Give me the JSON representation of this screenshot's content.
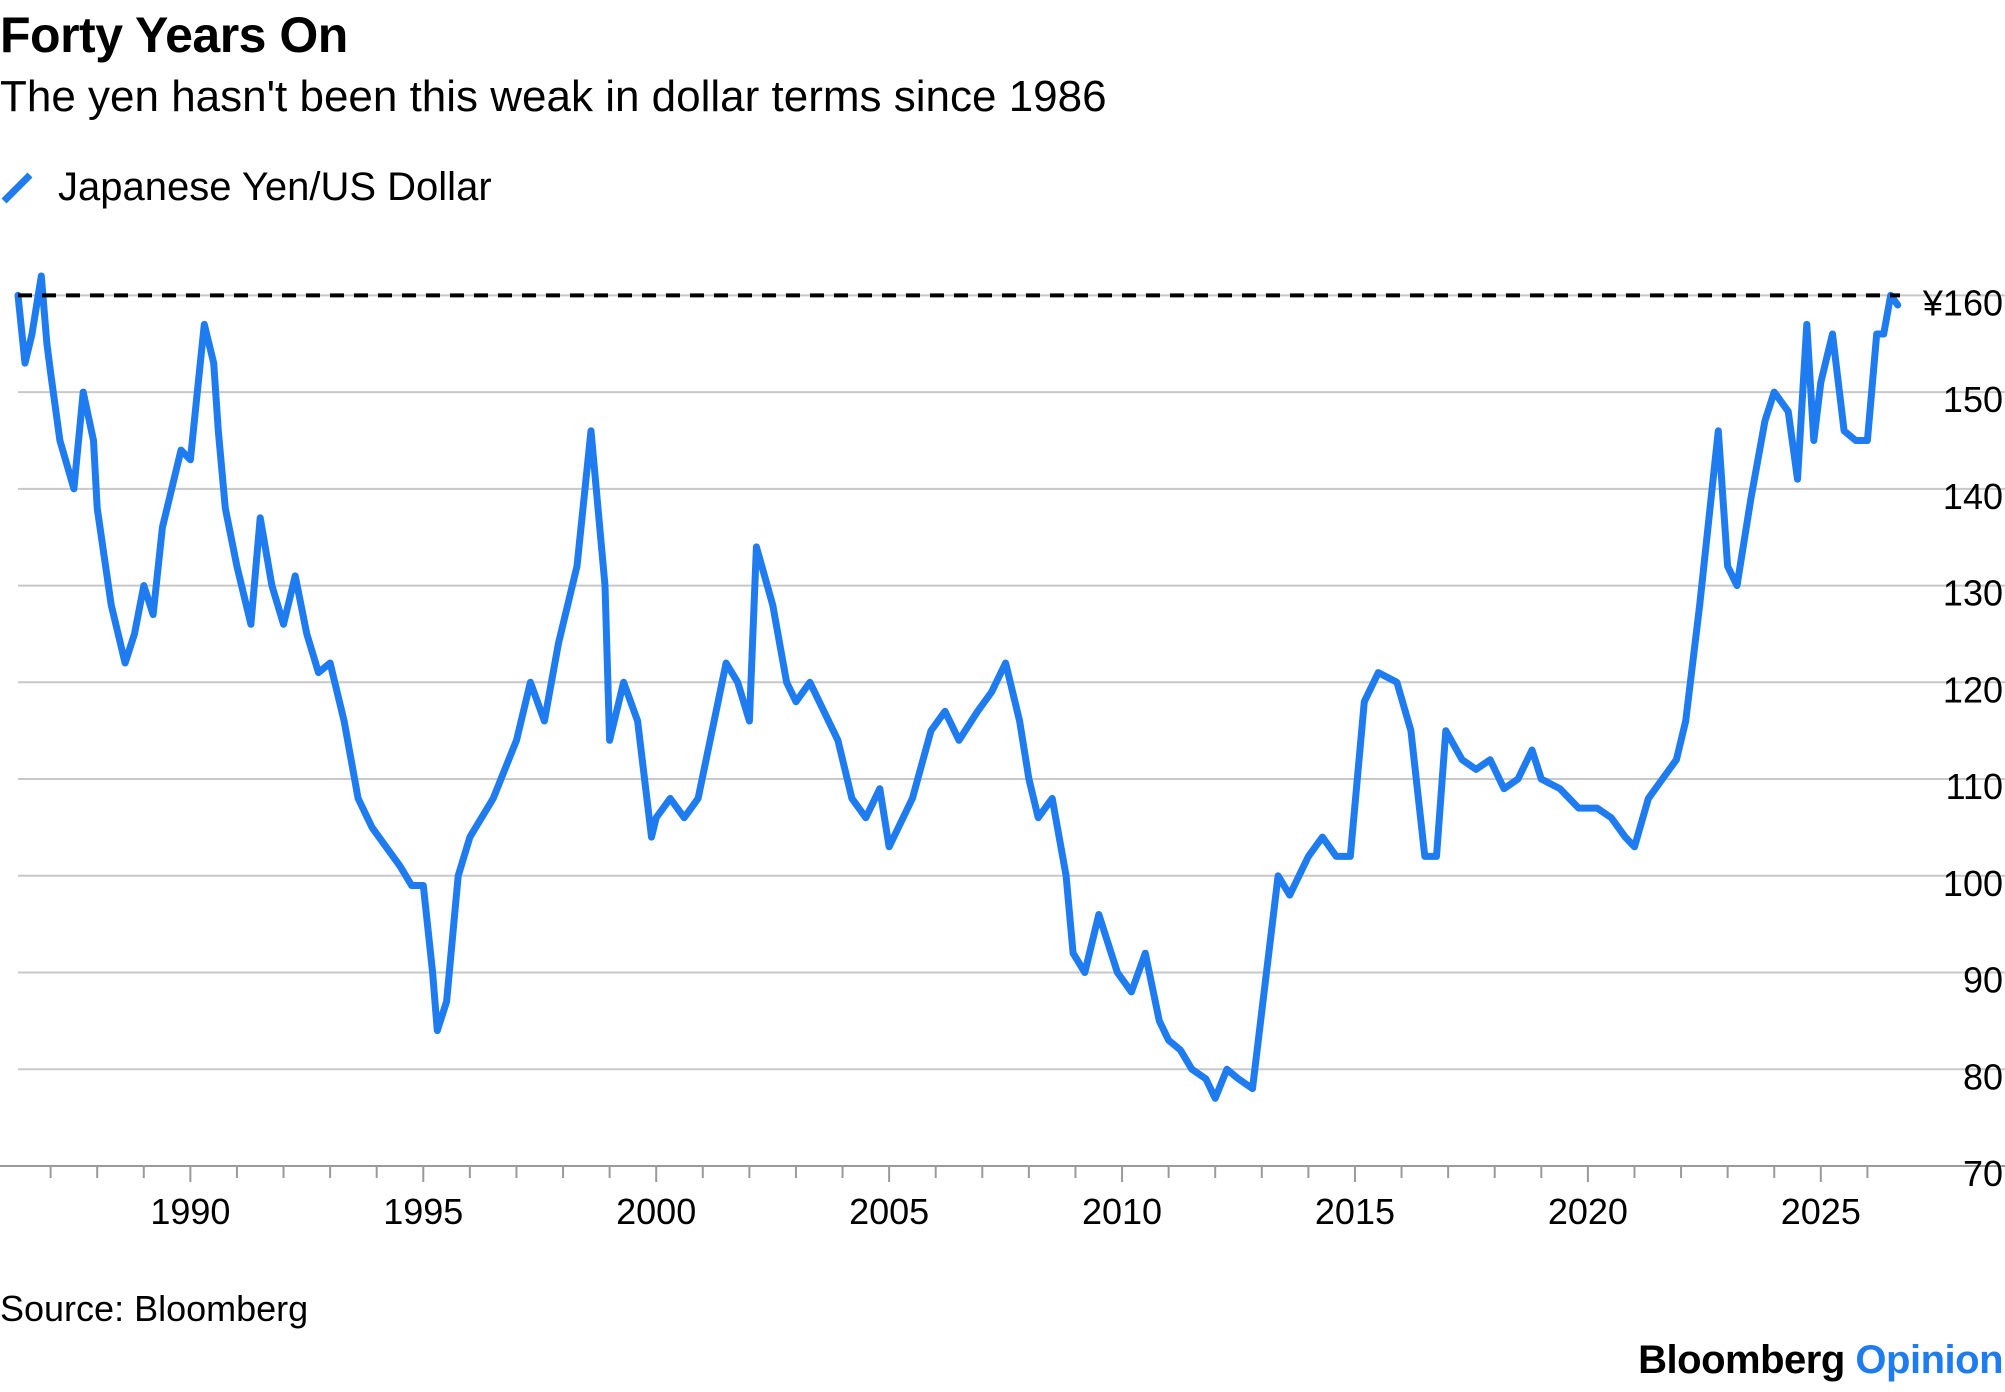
{
  "header": {
    "title": "Forty Years On",
    "subtitle": "The yen hasn't been this weak in dollar terms since 1986"
  },
  "footer": {
    "source": "Source: Bloomberg",
    "brand_main": "Bloomberg",
    "brand_accent": "Opinion"
  },
  "colors": {
    "series": "#1f7cf0",
    "reference": "#000000",
    "grid": "#c8c8c8",
    "brand_accent": "#1f7cf0"
  },
  "chart_data": {
    "type": "line",
    "title": "Forty Years On",
    "subtitle": "The yen hasn't been this weak in dollar terms since 1986",
    "xlabel": "",
    "ylabel": "",
    "xlim": [
      1986.3,
      2026.7
    ],
    "ylim": [
      70,
      162
    ],
    "y_ticks": [
      70,
      80,
      90,
      100,
      110,
      120,
      130,
      140,
      150,
      160
    ],
    "y_tick_labels": [
      "70",
      "80",
      "90",
      "100",
      "110",
      "120",
      "130",
      "140",
      "150",
      "¥160"
    ],
    "x_ticks": [
      1990,
      1995,
      2000,
      2005,
      2010,
      2015,
      2020,
      2025
    ],
    "x_tick_labels": [
      "1990",
      "1995",
      "2000",
      "2005",
      "2010",
      "2015",
      "2020",
      "2025"
    ],
    "grid": "horizontal",
    "legend_position": "top-left",
    "reference_line": {
      "value": 160,
      "style": "dashed"
    },
    "series": [
      {
        "name": "Japanese Yen/US Dollar",
        "x": [
          1986.3,
          1986.45,
          1986.6,
          1986.8,
          1986.92,
          1987.0,
          1987.2,
          1987.5,
          1987.7,
          1987.92,
          1988.0,
          1988.3,
          1988.6,
          1988.8,
          1989.0,
          1989.2,
          1989.4,
          1989.6,
          1989.8,
          1990.0,
          1990.15,
          1990.3,
          1990.5,
          1990.6,
          1990.75,
          1991.0,
          1991.3,
          1991.5,
          1991.75,
          1992.0,
          1992.25,
          1992.5,
          1992.75,
          1993.0,
          1993.3,
          1993.6,
          1993.9,
          1994.2,
          1994.5,
          1994.75,
          1995.0,
          1995.2,
          1995.3,
          1995.5,
          1995.75,
          1996.0,
          1996.5,
          1997.0,
          1997.3,
          1997.6,
          1997.9,
          1998.3,
          1998.6,
          1998.75,
          1998.9,
          1999.0,
          1999.3,
          1999.6,
          1999.9,
          2000.0,
          2000.3,
          2000.6,
          2000.9,
          2001.2,
          2001.5,
          2001.75,
          2002.0,
          2002.15,
          2002.5,
          2002.8,
          2003.0,
          2003.3,
          2003.6,
          2003.9,
          2004.2,
          2004.5,
          2004.8,
          2005.0,
          2005.5,
          2005.9,
          2006.2,
          2006.5,
          2006.9,
          2007.2,
          2007.5,
          2007.8,
          2008.0,
          2008.2,
          2008.5,
          2008.8,
          2008.95,
          2009.2,
          2009.5,
          2009.9,
          2010.2,
          2010.5,
          2010.8,
          2011.0,
          2011.25,
          2011.5,
          2011.8,
          2012.0,
          2012.25,
          2012.5,
          2012.8,
          2013.0,
          2013.35,
          2013.6,
          2014.0,
          2014.3,
          2014.6,
          2014.9,
          2015.2,
          2015.5,
          2015.9,
          2016.2,
          2016.5,
          2016.75,
          2016.95,
          2017.3,
          2017.6,
          2017.9,
          2018.2,
          2018.5,
          2018.8,
          2019.0,
          2019.4,
          2019.8,
          2020.2,
          2020.5,
          2020.8,
          2021.0,
          2021.3,
          2021.6,
          2021.9,
          2022.1,
          2022.4,
          2022.6,
          2022.8,
          2023.0,
          2023.2,
          2023.5,
          2023.8,
          2024.0,
          2024.3,
          2024.5,
          2024.7,
          2024.85,
          2025.0,
          2025.25,
          2025.5,
          2025.75,
          2026.0,
          2026.2,
          2026.35,
          2026.5,
          2026.65
        ],
        "values": [
          160.0,
          153.0,
          156.0,
          162.0,
          155.0,
          152.0,
          145.0,
          140.0,
          150.0,
          145.0,
          138.0,
          128.0,
          122.0,
          125.0,
          130.0,
          127.0,
          136.0,
          140.0,
          144.0,
          143.0,
          150.0,
          157.0,
          153.0,
          146.0,
          138.0,
          132.0,
          126.0,
          137.0,
          130.0,
          126.0,
          131.0,
          125.0,
          121.0,
          122.0,
          116.0,
          108.0,
          105.0,
          103.0,
          101.0,
          99.0,
          99.0,
          90.0,
          84.0,
          87.0,
          100.0,
          104.0,
          108.0,
          114.0,
          120.0,
          116.0,
          124.0,
          132.0,
          146.0,
          138.0,
          130.0,
          114.0,
          120.0,
          116.0,
          104.0,
          106.0,
          108.0,
          106.0,
          108.0,
          115.0,
          122.0,
          120.0,
          116.0,
          134.0,
          128.0,
          120.0,
          118.0,
          120.0,
          117.0,
          114.0,
          108.0,
          106.0,
          109.0,
          103.0,
          108.0,
          115.0,
          117.0,
          114.0,
          117.0,
          119.0,
          122.0,
          116.0,
          110.0,
          106.0,
          108.0,
          100.0,
          92.0,
          90.0,
          96.0,
          90.0,
          88.0,
          92.0,
          85.0,
          83.0,
          82.0,
          80.0,
          79.0,
          77.0,
          80.0,
          79.0,
          78.0,
          86.0,
          100.0,
          98.0,
          102.0,
          104.0,
          102.0,
          102.0,
          118.0,
          121.0,
          120.0,
          115.0,
          102.0,
          102.0,
          115.0,
          112.0,
          111.0,
          112.0,
          109.0,
          110.0,
          113.0,
          110.0,
          109.0,
          107.0,
          107.0,
          106.0,
          104.0,
          103.0,
          108.0,
          110.0,
          112.0,
          116.0,
          128.0,
          137.0,
          146.0,
          132.0,
          130.0,
          139.0,
          147.0,
          150.0,
          148.0,
          141.0,
          157.0,
          145.0,
          151.0,
          156.0,
          146.0,
          145.0,
          145.0,
          156.0,
          156.0,
          160.0,
          159.0
        ]
      }
    ]
  }
}
